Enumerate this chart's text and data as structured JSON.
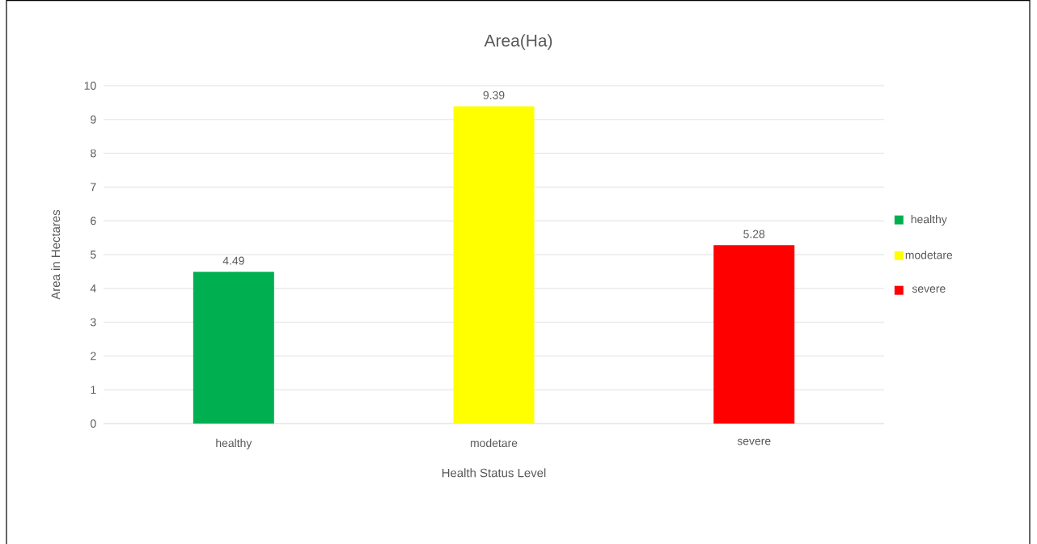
{
  "chart_data": {
    "type": "bar",
    "title": "Area(Ha)",
    "xlabel": "Health Status Level",
    "ylabel": "Area in Hectares",
    "categories": [
      "healthy",
      "modetare",
      "severe"
    ],
    "series": [
      {
        "name": "healthy",
        "color": "#00b050",
        "values": [
          4.49,
          null,
          null
        ]
      },
      {
        "name": "modetare",
        "color": "#ffff00",
        "values": [
          null,
          9.39,
          null
        ]
      },
      {
        "name": "severe",
        "color": "#ff0000",
        "values": [
          null,
          null,
          5.28
        ]
      }
    ],
    "ylim": [
      0,
      10
    ],
    "yticks": [
      0,
      1,
      2,
      3,
      4,
      5,
      6,
      7,
      8,
      9,
      10
    ],
    "grid": "y",
    "legend": "right",
    "data_labels": true
  }
}
